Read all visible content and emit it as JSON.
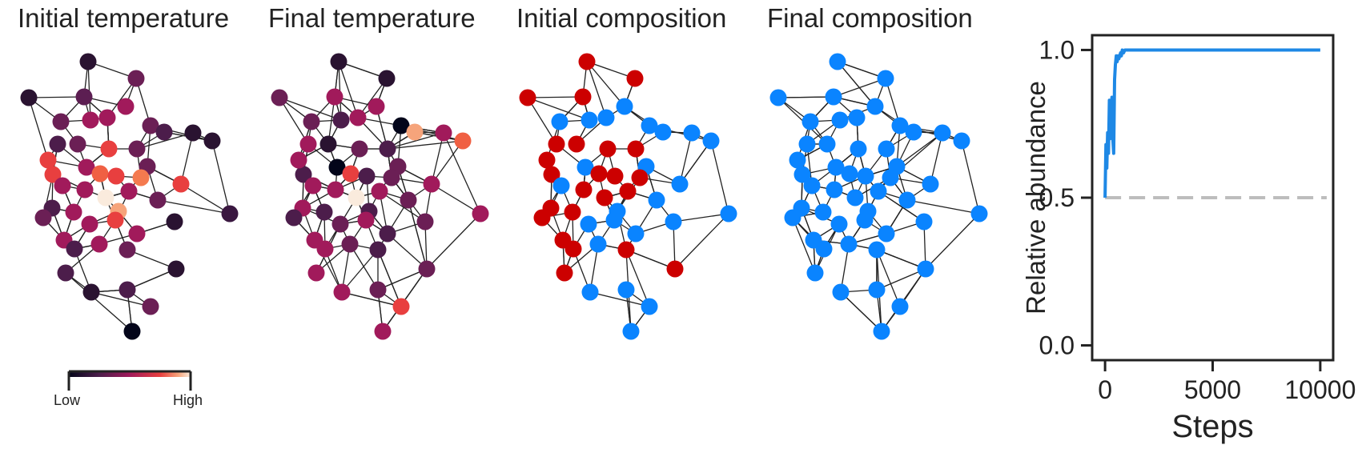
{
  "panels": [
    {
      "title": "Initial temperature"
    },
    {
      "title": "Final temperature"
    },
    {
      "title": "Initial composition"
    },
    {
      "title": "Final composition"
    }
  ],
  "colorbar": {
    "low_label": "Low",
    "high_label": "High"
  },
  "colors": {
    "composition_a": "#cc0000",
    "composition_b": "#0a84ff",
    "line": "#1e88e5",
    "reference": "#bdbdbd"
  },
  "chart_data": {
    "type": "line",
    "title": "",
    "xlabel": "Steps",
    "ylabel": "Relative abundance",
    "xlim": [
      -600,
      10600
    ],
    "ylim": [
      -0.05,
      1.05
    ],
    "xticks": [
      0,
      5000,
      10000
    ],
    "xtick_labels": [
      "0",
      "5000",
      "10000"
    ],
    "yticks": [
      0.0,
      0.5,
      1.0
    ],
    "ytick_labels": [
      "0.0",
      "0.5",
      "1.0"
    ],
    "grid": false,
    "series": [
      {
        "x": [
          0,
          40,
          80,
          120,
          160,
          200,
          240,
          280,
          320,
          360,
          400,
          440,
          480,
          520,
          560,
          600,
          640,
          680,
          720,
          760,
          800,
          860,
          920,
          1000,
          2000,
          4000,
          6000,
          8000,
          10000
        ],
        "y": [
          0.5,
          0.68,
          0.6,
          0.72,
          0.65,
          0.83,
          0.7,
          0.76,
          0.84,
          0.7,
          0.65,
          0.9,
          0.95,
          0.98,
          0.96,
          0.98,
          0.97,
          0.98,
          0.99,
          0.98,
          1.0,
          0.99,
          1.0,
          1.0,
          1.0,
          1.0,
          1.0,
          1.0,
          1.0
        ]
      }
    ],
    "reference_line": {
      "y": 0.5
    }
  }
}
